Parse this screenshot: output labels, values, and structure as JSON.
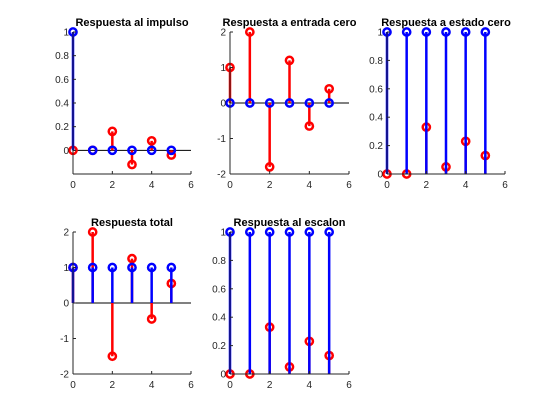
{
  "figure": {
    "colors": {
      "blue": "#0000ff",
      "red": "#ff0000",
      "axis": "#262626"
    }
  },
  "chart_data": [
    {
      "type": "stem",
      "title": "Respuesta al impulso",
      "xlim": [
        0,
        6
      ],
      "ylim": [
        -0.2,
        1
      ],
      "xticks": [
        0,
        2,
        4,
        6
      ],
      "yticks": [
        0,
        0.2,
        0.4,
        0.6,
        0.8,
        1
      ],
      "yticklabels": [
        "0",
        "0.2",
        "0.4",
        "0.6",
        "0.8",
        "1"
      ],
      "series": [
        {
          "color": "blue",
          "x": [
            0,
            1,
            2,
            3,
            4,
            5
          ],
          "values": [
            1,
            0,
            0,
            0,
            0,
            0
          ]
        },
        {
          "color": "red",
          "x": [
            0,
            1,
            2,
            3,
            4,
            5
          ],
          "values": [
            0,
            0,
            0.16,
            -0.12,
            0.08,
            -0.04
          ]
        }
      ]
    },
    {
      "type": "stem",
      "title": "Respuesta a entrada cero",
      "xlim": [
        0,
        6
      ],
      "ylim": [
        -2,
        2
      ],
      "xticks": [
        0,
        2,
        4,
        6
      ],
      "yticks": [
        -2,
        -1,
        0,
        1,
        2
      ],
      "yticklabels": [
        "-2",
        "-1",
        "0",
        "1",
        "2"
      ],
      "series": [
        {
          "color": "blue",
          "x": [
            0,
            1,
            2,
            3,
            4,
            5
          ],
          "values": [
            0,
            0,
            0,
            0,
            0,
            0
          ]
        },
        {
          "color": "red",
          "x": [
            0,
            1,
            2,
            3,
            4,
            5
          ],
          "values": [
            1,
            2,
            -1.8,
            1.2,
            -0.65,
            0.4
          ]
        }
      ]
    },
    {
      "type": "stem",
      "title": "Respuesta a estado cero",
      "xlim": [
        0,
        6
      ],
      "ylim": [
        0,
        1
      ],
      "xticks": [
        0,
        2,
        4,
        6
      ],
      "yticks": [
        0,
        0.2,
        0.4,
        0.6,
        0.8,
        1
      ],
      "yticklabels": [
        "0",
        "0.2",
        "0.4",
        "0.6",
        "0.8",
        "1"
      ],
      "series": [
        {
          "color": "blue",
          "x": [
            0,
            1,
            2,
            3,
            4,
            5
          ],
          "values": [
            1,
            1,
            1,
            1,
            1,
            1
          ]
        },
        {
          "color": "red",
          "x": [
            0,
            1,
            2,
            3,
            4,
            5
          ],
          "values": [
            0,
            0,
            0.33,
            0.05,
            0.23,
            0.13
          ]
        }
      ]
    },
    {
      "type": "stem",
      "title": "Respuesta total",
      "xlim": [
        0,
        6
      ],
      "ylim": [
        -2,
        2
      ],
      "xticks": [
        0,
        2,
        4,
        6
      ],
      "yticks": [
        -2,
        -1,
        0,
        1,
        2
      ],
      "yticklabels": [
        "-2",
        "-1",
        "0",
        "1",
        "2"
      ],
      "series": [
        {
          "color": "blue",
          "x": [
            0,
            1,
            2,
            3,
            4,
            5
          ],
          "values": [
            1,
            1,
            1,
            1,
            1,
            1
          ]
        },
        {
          "color": "red",
          "x": [
            0,
            1,
            2,
            3,
            4,
            5
          ],
          "values": [
            1,
            2,
            -1.5,
            1.25,
            -0.45,
            0.55
          ]
        }
      ]
    },
    {
      "type": "stem",
      "title": "Respuesta al escalon",
      "xlim": [
        0,
        6
      ],
      "ylim": [
        0,
        1
      ],
      "xticks": [
        0,
        2,
        4,
        6
      ],
      "yticks": [
        0,
        0.2,
        0.4,
        0.6,
        0.8,
        1
      ],
      "yticklabels": [
        "0",
        "0.2",
        "0.4",
        "0.6",
        "0.8",
        "1"
      ],
      "series": [
        {
          "color": "blue",
          "x": [
            0,
            1,
            2,
            3,
            4,
            5
          ],
          "values": [
            1,
            1,
            1,
            1,
            1,
            1
          ]
        },
        {
          "color": "red",
          "x": [
            0,
            1,
            2,
            3,
            4,
            5
          ],
          "values": [
            0,
            0,
            0.33,
            0.05,
            0.23,
            0.13
          ]
        }
      ]
    }
  ]
}
